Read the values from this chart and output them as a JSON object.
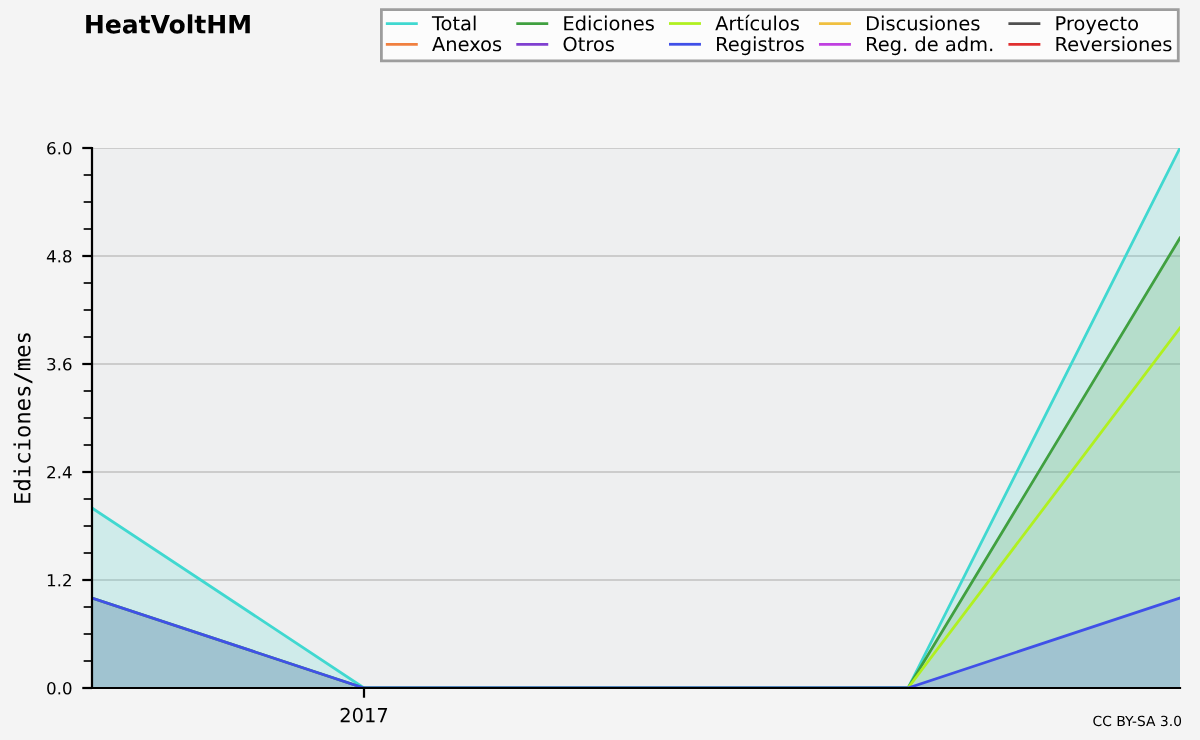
{
  "chart_data": {
    "type": "area",
    "title": "HeatVoltHM",
    "ylabel": "Ediciones/mes",
    "annotations": [
      "CC BY-SA 3.0"
    ],
    "categories": [
      null,
      "2017",
      null,
      null,
      null
    ],
    "ylim": [
      0,
      6
    ],
    "yticks": [
      {
        "value": 0,
        "label": "0.0"
      },
      {
        "value": 1.2,
        "label": "1.2"
      },
      {
        "value": 2.4,
        "label": "2.4"
      },
      {
        "value": 3.6,
        "label": "3.6"
      },
      {
        "value": 4.8,
        "label": "4.8"
      },
      {
        "value": 6,
        "label": "6.0"
      }
    ],
    "grid": "y",
    "legend": "top",
    "marker": "none",
    "series": [
      {
        "name": "Total",
        "color": "#40d8d0",
        "values": [
          2,
          0,
          0,
          0,
          6
        ]
      },
      {
        "name": "Ediciones",
        "color": "#40a040",
        "values": [
          1,
          0,
          0,
          0,
          5
        ]
      },
      {
        "name": "Artículos",
        "color": "#b0f020",
        "type": "line",
        "values": [
          null,
          null,
          null,
          0,
          4
        ]
      },
      {
        "name": "Discusiones",
        "color": "#f0c040",
        "type": "line",
        "values": [
          null,
          null,
          null,
          null,
          null
        ]
      },
      {
        "name": "Proyecto",
        "color": "#505050",
        "type": "line",
        "values": [
          null,
          null,
          null,
          null,
          null
        ]
      },
      {
        "name": "Anexos",
        "color": "#f08040",
        "type": "line",
        "values": [
          null,
          null,
          null,
          null,
          null
        ]
      },
      {
        "name": "Otros",
        "color": "#8040d0",
        "type": "line",
        "values": [
          null,
          null,
          null,
          null,
          null
        ]
      },
      {
        "name": "Registros",
        "color": "#4050e8",
        "values": [
          1,
          0,
          0,
          0,
          1
        ]
      },
      {
        "name": "Reg. de adm.",
        "color": "#c040e0",
        "type": "line",
        "values": [
          null,
          null,
          null,
          null,
          null
        ]
      },
      {
        "name": "Reversiones",
        "color": "#e03030",
        "type": "line",
        "values": [
          null,
          null,
          null,
          null,
          null
        ]
      }
    ]
  }
}
